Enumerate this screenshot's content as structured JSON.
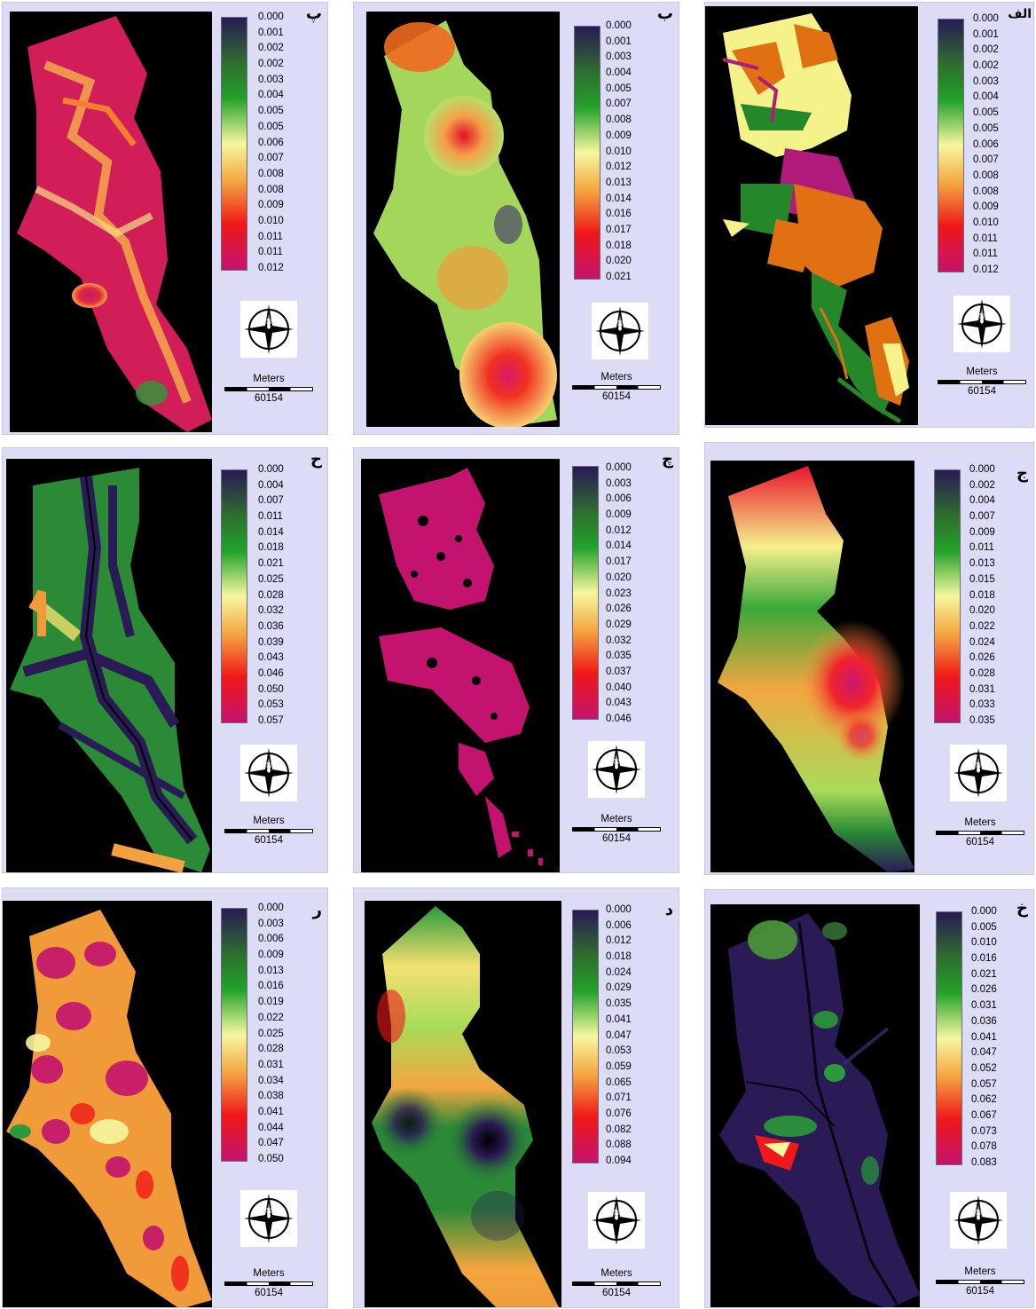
{
  "scale": {
    "unit": "Meters",
    "value": "60154"
  },
  "panels": [
    {
      "label": "پ",
      "ticks": [
        "0.000",
        "0.001",
        "0.002",
        "0.002",
        "0.003",
        "0.004",
        "0.005",
        "0.005",
        "0.006",
        "0.007",
        "0.008",
        "0.008",
        "0.009",
        "0.010",
        "0.011",
        "0.011",
        "0.012"
      ]
    },
    {
      "label": "ب",
      "ticks": [
        "0.000",
        "0.001",
        "0.003",
        "0.004",
        "0.005",
        "0.007",
        "0.008",
        "0.009",
        "0.010",
        "0.012",
        "0.013",
        "0.014",
        "0.016",
        "0.017",
        "0.018",
        "0.020",
        "0.021"
      ]
    },
    {
      "label": "الف",
      "ticks": [
        "0.000",
        "0.001",
        "0.002",
        "0.002",
        "0.003",
        "0.004",
        "0.005",
        "0.005",
        "0.006",
        "0.007",
        "0.008",
        "0.008",
        "0.009",
        "0.010",
        "0.011",
        "0.011",
        "0.012"
      ]
    },
    {
      "label": "ح",
      "ticks": [
        "0.000",
        "0.004",
        "0.007",
        "0.011",
        "0.014",
        "0.018",
        "0.021",
        "0.025",
        "0.028",
        "0.032",
        "0.036",
        "0.039",
        "0.043",
        "0.046",
        "0.050",
        "0.053",
        "0.057"
      ]
    },
    {
      "label": "چ",
      "ticks": [
        "0.000",
        "0.003",
        "0.006",
        "0.009",
        "0.012",
        "0.014",
        "0.017",
        "0.020",
        "0.023",
        "0.026",
        "0.029",
        "0.032",
        "0.035",
        "0.037",
        "0.040",
        "0.043",
        "0.046"
      ]
    },
    {
      "label": "ج",
      "ticks": [
        "0.000",
        "0.002",
        "0.004",
        "0.007",
        "0.009",
        "0.011",
        "0.013",
        "0.015",
        "0.018",
        "0.020",
        "0.022",
        "0.024",
        "0.026",
        "0.028",
        "0.031",
        "0.033",
        "0.035"
      ]
    },
    {
      "label": "ر",
      "ticks": [
        "0.000",
        "0.003",
        "0.006",
        "0.009",
        "0.013",
        "0.016",
        "0.019",
        "0.022",
        "0.025",
        "0.028",
        "0.031",
        "0.034",
        "0.038",
        "0.041",
        "0.044",
        "0.047",
        "0.050"
      ]
    },
    {
      "label": "د",
      "ticks": [
        "0.000",
        "0.006",
        "0.012",
        "0.018",
        "0.024",
        "0.029",
        "0.035",
        "0.041",
        "0.047",
        "0.053",
        "0.059",
        "0.065",
        "0.071",
        "0.076",
        "0.082",
        "0.088",
        "0.094"
      ]
    },
    {
      "label": "خ",
      "ticks": [
        "0.000",
        "0.005",
        "0.010",
        "0.016",
        "0.021",
        "0.026",
        "0.031",
        "0.036",
        "0.041",
        "0.047",
        "0.052",
        "0.057",
        "0.062",
        "0.067",
        "0.073",
        "0.078",
        "0.083"
      ]
    }
  ]
}
